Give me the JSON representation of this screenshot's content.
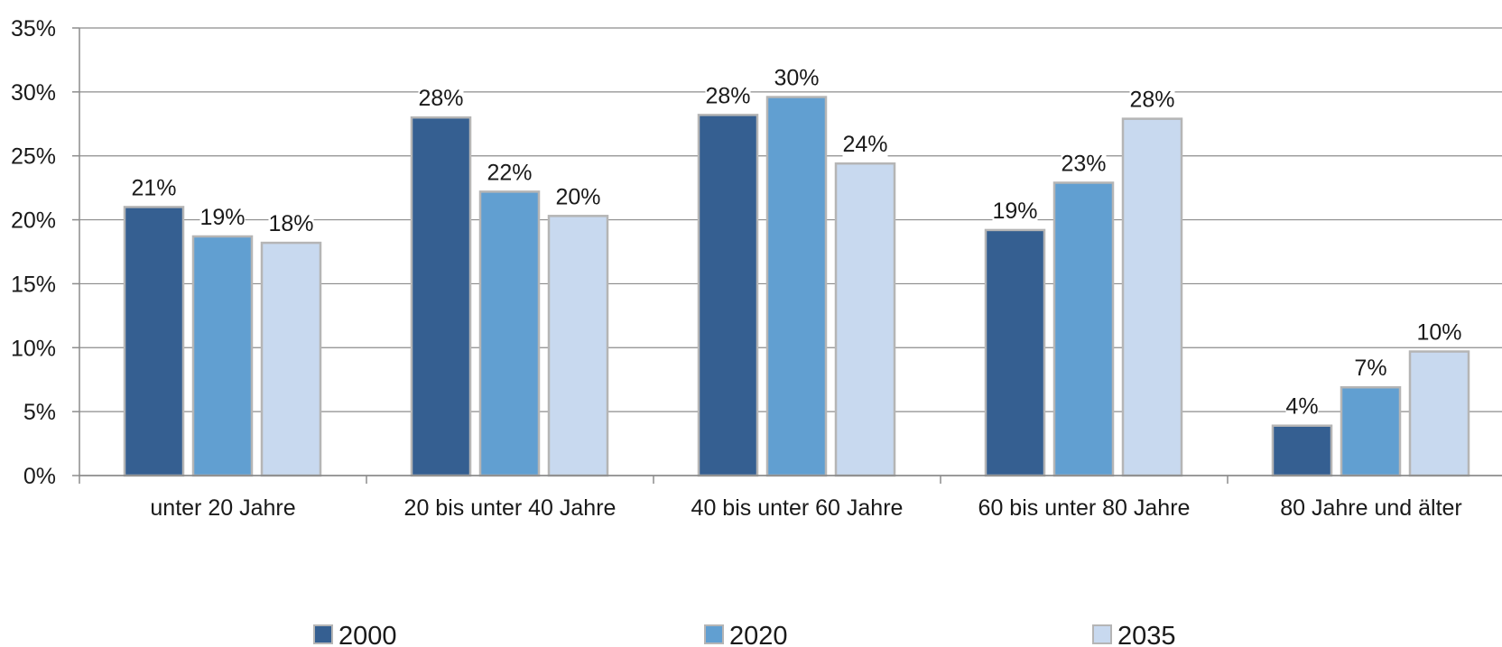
{
  "chart_data": {
    "type": "bar",
    "categories": [
      "unter 20 Jahre",
      "20 bis unter 40 Jahre",
      "40 bis unter 60 Jahre",
      "60 bis unter 80 Jahre",
      "80 Jahre und älter"
    ],
    "series": [
      {
        "name": "2000",
        "color": "#355F91",
        "values": [
          21,
          28,
          28.2,
          19.2,
          3.9
        ],
        "labels": [
          "21%",
          "28%",
          "28%",
          "19%",
          "4%"
        ]
      },
      {
        "name": "2020",
        "color": "#619FD1",
        "values": [
          18.7,
          22.2,
          29.6,
          22.9,
          6.9
        ],
        "labels": [
          "19%",
          "22%",
          "30%",
          "23%",
          "7%"
        ]
      },
      {
        "name": "2035",
        "color": "#C8D9EF",
        "values": [
          18.2,
          20.3,
          24.4,
          27.9,
          9.7
        ],
        "labels": [
          "18%",
          "20%",
          "24%",
          "28%",
          "10%"
        ]
      }
    ],
    "yticks": [
      "0%",
      "5%",
      "10%",
      "15%",
      "20%",
      "25%",
      "30%",
      "35%"
    ],
    "ylim": [
      0,
      35
    ],
    "ytick_step": 5,
    "grid": true,
    "legend_position": "bottom",
    "title": "",
    "xlabel": "",
    "ylabel": ""
  }
}
